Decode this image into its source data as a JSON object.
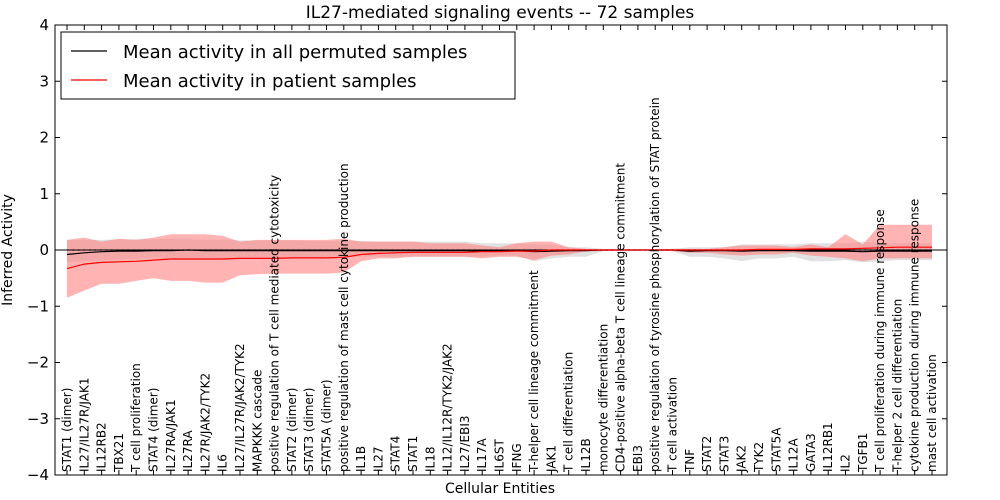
{
  "chart_data": {
    "type": "line",
    "title": "IL27-mediated signaling events -- 72 samples",
    "xlabel": "Cellular Entities",
    "ylabel": "Inferred Activity",
    "ylim": [
      -4,
      4
    ],
    "yticks": [
      -4,
      -3,
      -2,
      -1,
      0,
      1,
      2,
      3,
      4
    ],
    "grid": false,
    "legend_position": "top-left",
    "categories": [
      "STAT1 (dimer)",
      "IL27/IL27R/JAK1",
      "IL12RB2",
      "TBX21",
      "T cell proliferation",
      "STAT4 (dimer)",
      "IL27RA/JAK1",
      "IL27RA",
      "IL27R/JAK2/TYK2",
      "IL6",
      "IL27/IL27R/JAK2/TYK2",
      "MAPKKK cascade",
      "positive regulation of T cell mediated cytotoxicity",
      "STAT2 (dimer)",
      "STAT3 (dimer)",
      "STAT5A (dimer)",
      "positive regulation of mast cell cytokine production",
      "IL1B",
      "IL27",
      "STAT4",
      "STAT1",
      "IL18",
      "IL12/IL12R/TYK2/JAK2",
      "IL27/EBI3",
      "IL17A",
      "IL6ST",
      "IFNG",
      "T-helper cell lineage commitment",
      "JAK1",
      "T cell differentiation",
      "IL12B",
      "monocyte differentiation",
      "CD4-positive alpha-beta T cell lineage commitment",
      "EBI3",
      "positive regulation of tyrosine phosphorylation of STAT protein",
      "T cell activation",
      "TNF",
      "STAT2",
      "STAT3",
      "JAK2",
      "TYK2",
      "STAT5A",
      "IL12A",
      "GATA3",
      "IL12RB1",
      "IL2",
      "TGFB1",
      "T cell proliferation during immune response",
      "T-helper 2 cell differentiation",
      "cytokine production during immune response",
      "mast cell activation"
    ],
    "series": [
      {
        "name": "Mean activity in all permuted samples",
        "color": "#000000",
        "band_color": "#c8c8c8",
        "values": [
          -0.08,
          -0.05,
          -0.03,
          -0.02,
          -0.02,
          -0.01,
          -0.01,
          0.0,
          -0.01,
          -0.01,
          -0.01,
          -0.01,
          -0.01,
          -0.01,
          -0.01,
          -0.01,
          -0.01,
          -0.01,
          -0.01,
          -0.01,
          -0.01,
          -0.01,
          -0.01,
          -0.01,
          -0.02,
          -0.01,
          -0.01,
          -0.03,
          -0.02,
          -0.01,
          -0.01,
          0.0,
          0.0,
          0.0,
          0.0,
          0.0,
          -0.02,
          -0.01,
          -0.01,
          -0.02,
          -0.01,
          -0.01,
          -0.01,
          -0.02,
          -0.02,
          -0.02,
          -0.03,
          -0.02,
          -0.02,
          -0.02,
          -0.02
        ],
        "lower": [
          -0.22,
          -0.2,
          -0.18,
          -0.17,
          -0.16,
          -0.15,
          -0.15,
          -0.15,
          -0.15,
          -0.15,
          -0.14,
          -0.14,
          -0.14,
          -0.14,
          -0.14,
          -0.14,
          -0.14,
          -0.12,
          -0.12,
          -0.12,
          -0.12,
          -0.12,
          -0.12,
          -0.12,
          -0.12,
          -0.1,
          -0.1,
          -0.2,
          -0.15,
          -0.12,
          -0.12,
          -0.02,
          -0.01,
          -0.01,
          -0.01,
          -0.02,
          -0.12,
          -0.12,
          -0.15,
          -0.2,
          -0.15,
          -0.15,
          -0.12,
          -0.2,
          -0.2,
          -0.18,
          -0.22,
          -0.2,
          -0.18,
          -0.18,
          -0.18
        ],
        "upper": [
          0.18,
          0.18,
          0.18,
          0.19,
          0.19,
          0.19,
          0.2,
          0.19,
          0.18,
          0.18,
          0.17,
          0.17,
          0.17,
          0.17,
          0.16,
          0.16,
          0.16,
          0.16,
          0.15,
          0.15,
          0.15,
          0.15,
          0.15,
          0.15,
          0.12,
          0.12,
          0.12,
          0.1,
          0.1,
          0.05,
          0.05,
          0.02,
          0.01,
          0.01,
          0.01,
          0.02,
          0.05,
          0.05,
          0.05,
          0.1,
          0.1,
          0.1,
          0.1,
          0.12,
          0.12,
          0.12,
          0.15,
          0.12,
          0.12,
          0.12,
          0.12
        ]
      },
      {
        "name": "Mean activity in patient samples",
        "color": "#ff0000",
        "band_color": "#ff8080",
        "values": [
          -0.33,
          -0.25,
          -0.22,
          -0.21,
          -0.2,
          -0.18,
          -0.16,
          -0.16,
          -0.16,
          -0.16,
          -0.15,
          -0.15,
          -0.15,
          -0.14,
          -0.14,
          -0.14,
          -0.13,
          -0.08,
          -0.06,
          -0.05,
          -0.04,
          -0.04,
          -0.04,
          -0.04,
          -0.03,
          -0.03,
          -0.02,
          -0.02,
          0.0,
          0.0,
          0.0,
          0.0,
          0.0,
          0.0,
          0.0,
          0.0,
          0.0,
          0.0,
          0.0,
          0.0,
          0.01,
          0.01,
          0.01,
          0.02,
          0.02,
          0.02,
          0.03,
          0.04,
          0.05,
          0.05,
          0.05
        ],
        "lower": [
          -0.85,
          -0.72,
          -0.6,
          -0.6,
          -0.55,
          -0.5,
          -0.55,
          -0.55,
          -0.58,
          -0.58,
          -0.45,
          -0.43,
          -0.42,
          -0.42,
          -0.42,
          -0.42,
          -0.4,
          -0.2,
          -0.15,
          -0.15,
          -0.12,
          -0.12,
          -0.12,
          -0.12,
          -0.15,
          -0.12,
          -0.12,
          -0.18,
          -0.1,
          -0.08,
          -0.02,
          -0.02,
          -0.01,
          -0.01,
          -0.01,
          -0.02,
          -0.05,
          -0.05,
          -0.08,
          -0.1,
          -0.08,
          -0.08,
          -0.05,
          -0.1,
          -0.12,
          -0.15,
          -0.2,
          -0.15,
          -0.15,
          -0.15,
          -0.15
        ],
        "upper": [
          0.18,
          0.22,
          0.15,
          0.2,
          0.18,
          0.22,
          0.28,
          0.28,
          0.28,
          0.25,
          0.15,
          0.18,
          0.18,
          0.18,
          0.18,
          0.18,
          0.2,
          0.15,
          0.15,
          0.15,
          0.15,
          0.12,
          0.12,
          0.12,
          0.08,
          0.05,
          0.12,
          0.15,
          0.15,
          0.05,
          0.02,
          0.01,
          0.01,
          0.01,
          0.01,
          0.02,
          0.02,
          0.02,
          0.05,
          0.08,
          0.08,
          0.08,
          0.05,
          0.1,
          0.05,
          0.28,
          0.1,
          0.45,
          0.45,
          0.45,
          0.45
        ]
      }
    ]
  }
}
